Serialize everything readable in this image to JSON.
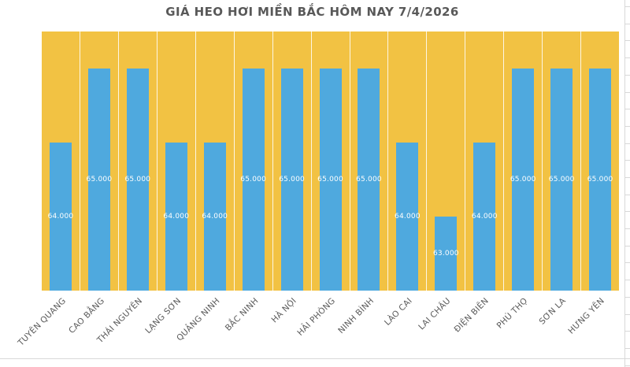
{
  "chart_data": {
    "type": "bar",
    "title": "GIÁ HEO HƠI MIỀN BẮC HÔM NAY 7/4/2026",
    "categories": [
      "TUYÊN QUANG",
      "CAO BẰNG",
      "THÁI NGUYÊN",
      "LẠNG SƠN",
      "QUẢNG NINH",
      "BẮC NINH",
      "HÀ NỘI",
      "HẢI PHÒNG",
      "NINH BÌNH",
      "LÀO CAI",
      "LAI CHÂU",
      "ĐIỆN BIÊN",
      "PHÚ THỌ",
      "SƠN LA",
      "HƯNG YÊN"
    ],
    "values": [
      64000,
      65000,
      65000,
      64000,
      64000,
      65000,
      65000,
      65000,
      65000,
      64000,
      63000,
      64000,
      65000,
      65000,
      65000
    ],
    "data_labels": [
      "64.000",
      "65.000",
      "65.000",
      "64.000",
      "64.000",
      "65.000",
      "65.000",
      "65.000",
      "65.000",
      "64.000",
      "63.000",
      "64.000",
      "65.000",
      "65.000",
      "65.000"
    ],
    "xlabel": "",
    "ylabel": "",
    "ylim": [
      62000,
      65500
    ],
    "legend": "none",
    "grid": "vertical white category separators on plot area",
    "colors": {
      "bar_fill": "#4FA9DE",
      "plot_area_fill": "#F2C243",
      "title_text": "#595959",
      "category_label_text": "#595959",
      "data_label_text": "#FFFFFF",
      "separator_line": "#FFFFFF",
      "sheet_gridline": "#D8D8D8"
    }
  }
}
